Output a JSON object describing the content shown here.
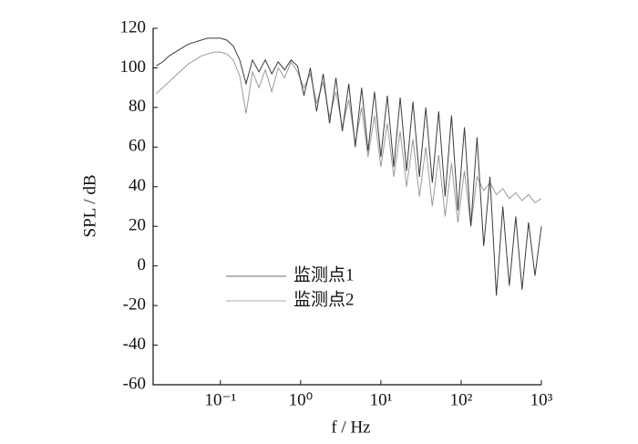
{
  "chart_data": {
    "type": "line",
    "x_label": "f / Hz",
    "y_label": "SPL / dB",
    "x": [
      0.0158,
      0.0191,
      0.0229,
      0.0275,
      0.0331,
      0.0398,
      0.0479,
      0.0575,
      0.0692,
      0.0832,
      0.1,
      0.12,
      0.145,
      0.174,
      0.209,
      0.251,
      0.302,
      0.363,
      0.437,
      0.525,
      0.631,
      0.759,
      0.912,
      1.1,
      1.32,
      1.58,
      1.91,
      2.29,
      2.75,
      3.31,
      3.98,
      4.79,
      5.75,
      6.92,
      8.32,
      10,
      12.0,
      14.5,
      17.4,
      20.9,
      25.1,
      30.2,
      36.3,
      43.7,
      52.5,
      63.1,
      75.9,
      91.2,
      110,
      132,
      158,
      191,
      229,
      275,
      331,
      398,
      479,
      575,
      692,
      832,
      1000
    ],
    "series": [
      {
        "name": "监测点1",
        "color": "#3c3c3c",
        "legend_color": "#8a8a8a",
        "values": [
          101,
          103,
          106,
          108,
          110,
          112,
          113,
          114,
          115,
          115,
          115,
          114,
          111,
          104,
          92,
          104,
          98,
          104,
          97,
          103,
          99,
          104,
          101,
          86,
          100,
          78,
          97,
          72,
          95,
          68,
          92,
          60,
          90,
          58,
          88,
          55,
          86,
          50,
          85,
          48,
          83,
          45,
          80,
          42,
          78,
          35,
          76,
          28,
          70,
          20,
          65,
          10,
          45,
          -15,
          30,
          -10,
          25,
          -12,
          22,
          -5,
          20
        ]
      },
      {
        "name": "监测点2",
        "color": "#9a9a9a",
        "legend_color": "#bdbdbd",
        "values": [
          87,
          90,
          93,
          96,
          99,
          102,
          104,
          106,
          107,
          108,
          108,
          107,
          104,
          96,
          77,
          98,
          90,
          99,
          88,
          100,
          95,
          103,
          98,
          90,
          97,
          82,
          93,
          75,
          88,
          70,
          84,
          62,
          80,
          55,
          76,
          50,
          72,
          45,
          68,
          40,
          64,
          35,
          60,
          30,
          56,
          25,
          52,
          22,
          48,
          20,
          45,
          38,
          42,
          36,
          39,
          34,
          37,
          33,
          36,
          32,
          34
        ]
      }
    ],
    "x_scale": "log",
    "xlim": [
      0.0145,
      1000
    ],
    "xticks": [
      {
        "value": 0.1,
        "label": "10⁻¹"
      },
      {
        "value": 1,
        "label": "10⁰"
      },
      {
        "value": 10,
        "label": "10¹"
      },
      {
        "value": 100,
        "label": "10²"
      },
      {
        "value": 1000,
        "label": "10³"
      }
    ],
    "ylim": [
      -60,
      120
    ],
    "yticks": [
      -60,
      -40,
      -20,
      0,
      20,
      40,
      60,
      80,
      100,
      120
    ],
    "grid": false,
    "legend": "lower left"
  }
}
